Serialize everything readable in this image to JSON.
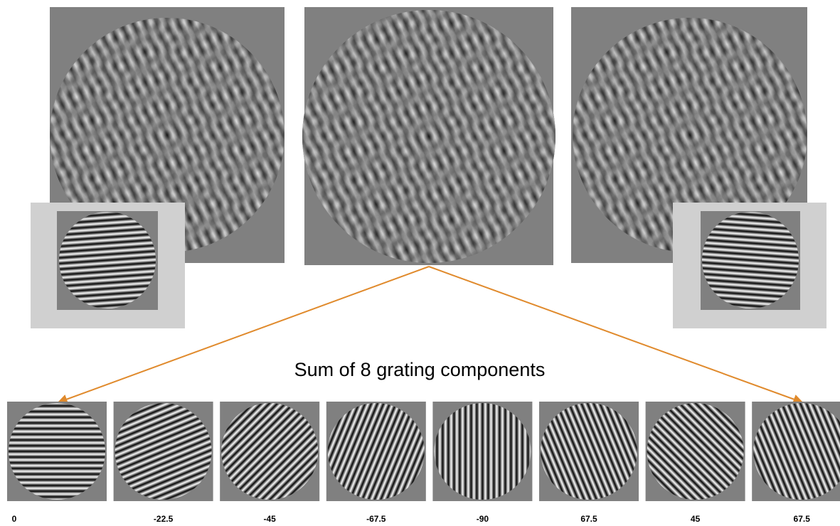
{
  "caption": "Sum of 8 grating components",
  "components": [
    {
      "label": "0"
    },
    {
      "label": "-22.5"
    },
    {
      "label": "-45"
    },
    {
      "label": "-67.5"
    },
    {
      "label": "-90"
    },
    {
      "label": "67.5"
    },
    {
      "label": "45"
    },
    {
      "label": "67.5"
    }
  ]
}
